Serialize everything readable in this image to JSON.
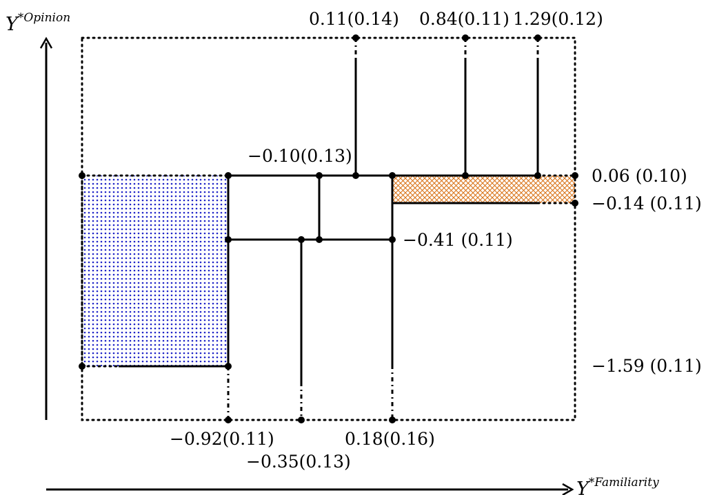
{
  "axes": {
    "y_label": {
      "var": "Y",
      "sup": "*Opinion"
    },
    "x_label": {
      "var": "Y",
      "sup": "*Familiarity"
    }
  },
  "top_labels": {
    "a": "0.11(0.14)",
    "b": "0.84(0.11)",
    "c": "1.29(0.12)"
  },
  "right_labels": {
    "a": "0.06 (0.10)",
    "b": "−0.14 (0.11)",
    "c": "−1.59 (0.11)"
  },
  "inner_labels": {
    "upper_mid": "−0.10(0.13)",
    "mid_right": "−0.41 (0.11)"
  },
  "bottom_labels": {
    "a": "−0.92(0.11)",
    "b": "0.18(0.16)",
    "c": "−0.35(0.13)"
  },
  "colors": {
    "blue_region": "#1f24c8",
    "orange_region": "#d9741a",
    "lines": "#000000"
  }
}
